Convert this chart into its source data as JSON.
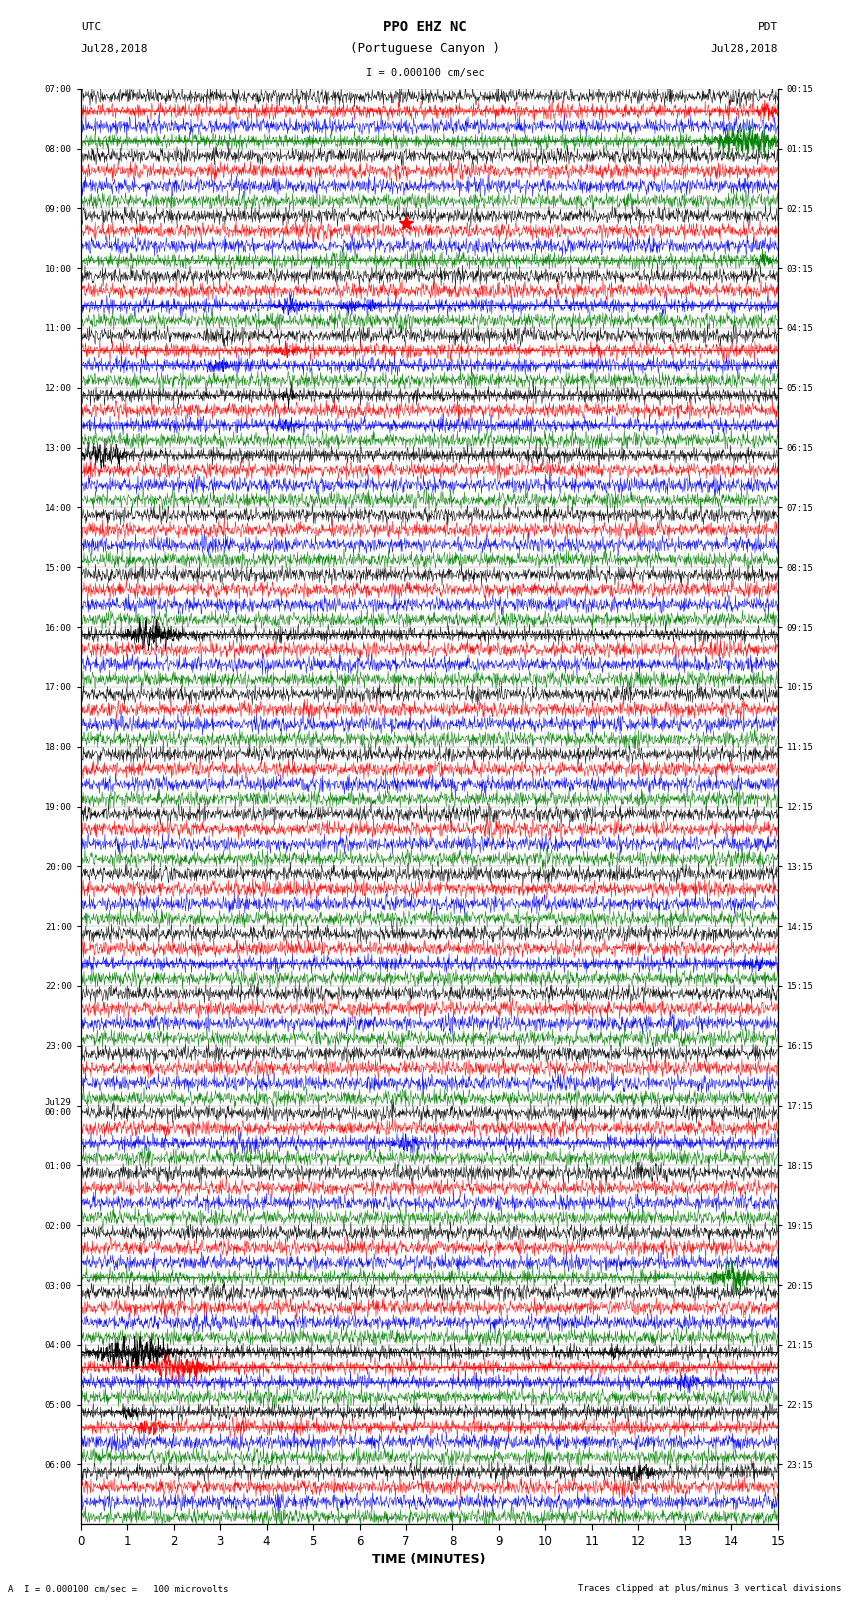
{
  "title_line1": "PPO EHZ NC",
  "title_line2": "(Portuguese Canyon )",
  "scale_label": "I = 0.000100 cm/sec",
  "utc_label": "UTC",
  "utc_date": "Jul28,2018",
  "pdt_label": "PDT",
  "pdt_date": "Jul28,2018",
  "xlabel": "TIME (MINUTES)",
  "bottom_left": "A  I = 0.000100 cm/sec =   100 microvolts",
  "bottom_right": "Traces clipped at plus/minus 3 vertical divisions",
  "x_ticks": [
    0,
    1,
    2,
    3,
    4,
    5,
    6,
    7,
    8,
    9,
    10,
    11,
    12,
    13,
    14,
    15
  ],
  "left_times": [
    "07:00",
    "08:00",
    "09:00",
    "10:00",
    "11:00",
    "12:00",
    "13:00",
    "14:00",
    "15:00",
    "16:00",
    "17:00",
    "18:00",
    "19:00",
    "20:00",
    "21:00",
    "22:00",
    "23:00",
    "Jul29\n00:00",
    "01:00",
    "02:00",
    "03:00",
    "04:00",
    "05:00",
    "06:00"
  ],
  "right_times": [
    "00:15",
    "01:15",
    "02:15",
    "03:15",
    "04:15",
    "05:15",
    "06:15",
    "07:15",
    "08:15",
    "09:15",
    "10:15",
    "11:15",
    "12:15",
    "13:15",
    "14:15",
    "15:15",
    "16:15",
    "17:15",
    "18:15",
    "19:15",
    "20:15",
    "21:15",
    "22:15",
    "23:15"
  ],
  "n_rows": 24,
  "traces_per_row": 4,
  "colors": [
    "black",
    "red",
    "blue",
    "green"
  ],
  "bg_color": "#ffffff",
  "figsize": [
    8.5,
    16.13
  ],
  "dpi": 100
}
